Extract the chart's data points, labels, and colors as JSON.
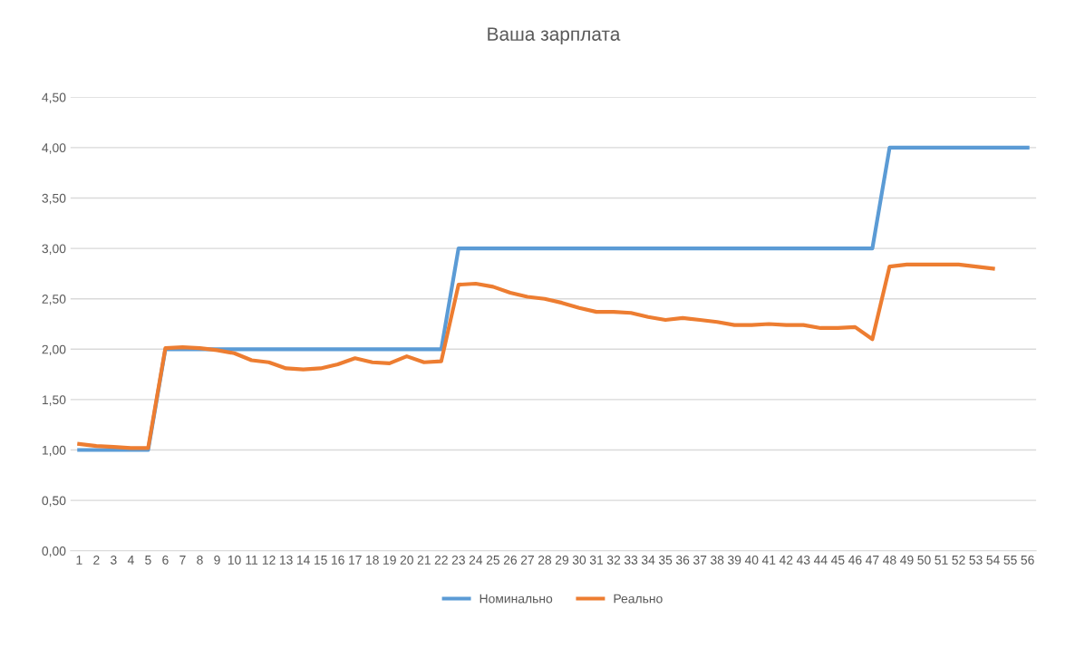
{
  "chart_data": {
    "type": "line",
    "title": "Ваша зарплата",
    "categories": [
      "1",
      "2",
      "3",
      "4",
      "5",
      "6",
      "7",
      "8",
      "9",
      "10",
      "11",
      "12",
      "13",
      "14",
      "15",
      "16",
      "17",
      "18",
      "19",
      "20",
      "21",
      "22",
      "23",
      "24",
      "25",
      "26",
      "27",
      "28",
      "29",
      "30",
      "31",
      "32",
      "33",
      "34",
      "35",
      "36",
      "37",
      "38",
      "39",
      "40",
      "41",
      "42",
      "43",
      "44",
      "45",
      "46",
      "47",
      "48",
      "49",
      "50",
      "51",
      "52",
      "53",
      "54",
      "55",
      "56"
    ],
    "series": [
      {
        "name": "Номинально",
        "color": "#5b9bd5",
        "values": [
          1,
          1,
          1,
          1,
          1,
          2,
          2,
          2,
          2,
          2,
          2,
          2,
          2,
          2,
          2,
          2,
          2,
          2,
          2,
          2,
          2,
          2,
          3,
          3,
          3,
          3,
          3,
          3,
          3,
          3,
          3,
          3,
          3,
          3,
          3,
          3,
          3,
          3,
          3,
          3,
          3,
          3,
          3,
          3,
          3,
          3,
          3,
          4,
          4,
          4,
          4,
          4,
          4,
          4,
          4,
          4
        ]
      },
      {
        "name": "Реально",
        "color": "#ed7d31",
        "values": [
          1.06,
          1.04,
          1.03,
          1.02,
          1.02,
          2.01,
          2.02,
          2.01,
          1.99,
          1.96,
          1.89,
          1.87,
          1.81,
          1.8,
          1.81,
          1.85,
          1.91,
          1.87,
          1.86,
          1.93,
          1.87,
          1.88,
          2.64,
          2.65,
          2.62,
          2.56,
          2.52,
          2.5,
          2.46,
          2.41,
          2.37,
          2.37,
          2.36,
          2.32,
          2.29,
          2.31,
          2.29,
          2.27,
          2.24,
          2.24,
          2.25,
          2.24,
          2.24,
          2.21,
          2.21,
          2.22,
          2.1,
          2.82,
          2.84,
          2.84,
          2.84,
          2.84,
          2.82,
          2.8,
          null,
          null
        ]
      }
    ],
    "ylim": [
      0,
      4.5
    ],
    "yticks": [
      {
        "value": 0,
        "label": "0,00"
      },
      {
        "value": 0.5,
        "label": "0,50"
      },
      {
        "value": 1,
        "label": "1,00"
      },
      {
        "value": 1.5,
        "label": "1,50"
      },
      {
        "value": 2,
        "label": "2,00"
      },
      {
        "value": 2.5,
        "label": "2,50"
      },
      {
        "value": 3,
        "label": "3,00"
      },
      {
        "value": 3.5,
        "label": "3,50"
      },
      {
        "value": 4,
        "label": "4,00"
      },
      {
        "value": 4.5,
        "label": "4,50"
      }
    ],
    "grid": "y",
    "legend": "bottom",
    "marker": "none",
    "line_style": "solid"
  }
}
